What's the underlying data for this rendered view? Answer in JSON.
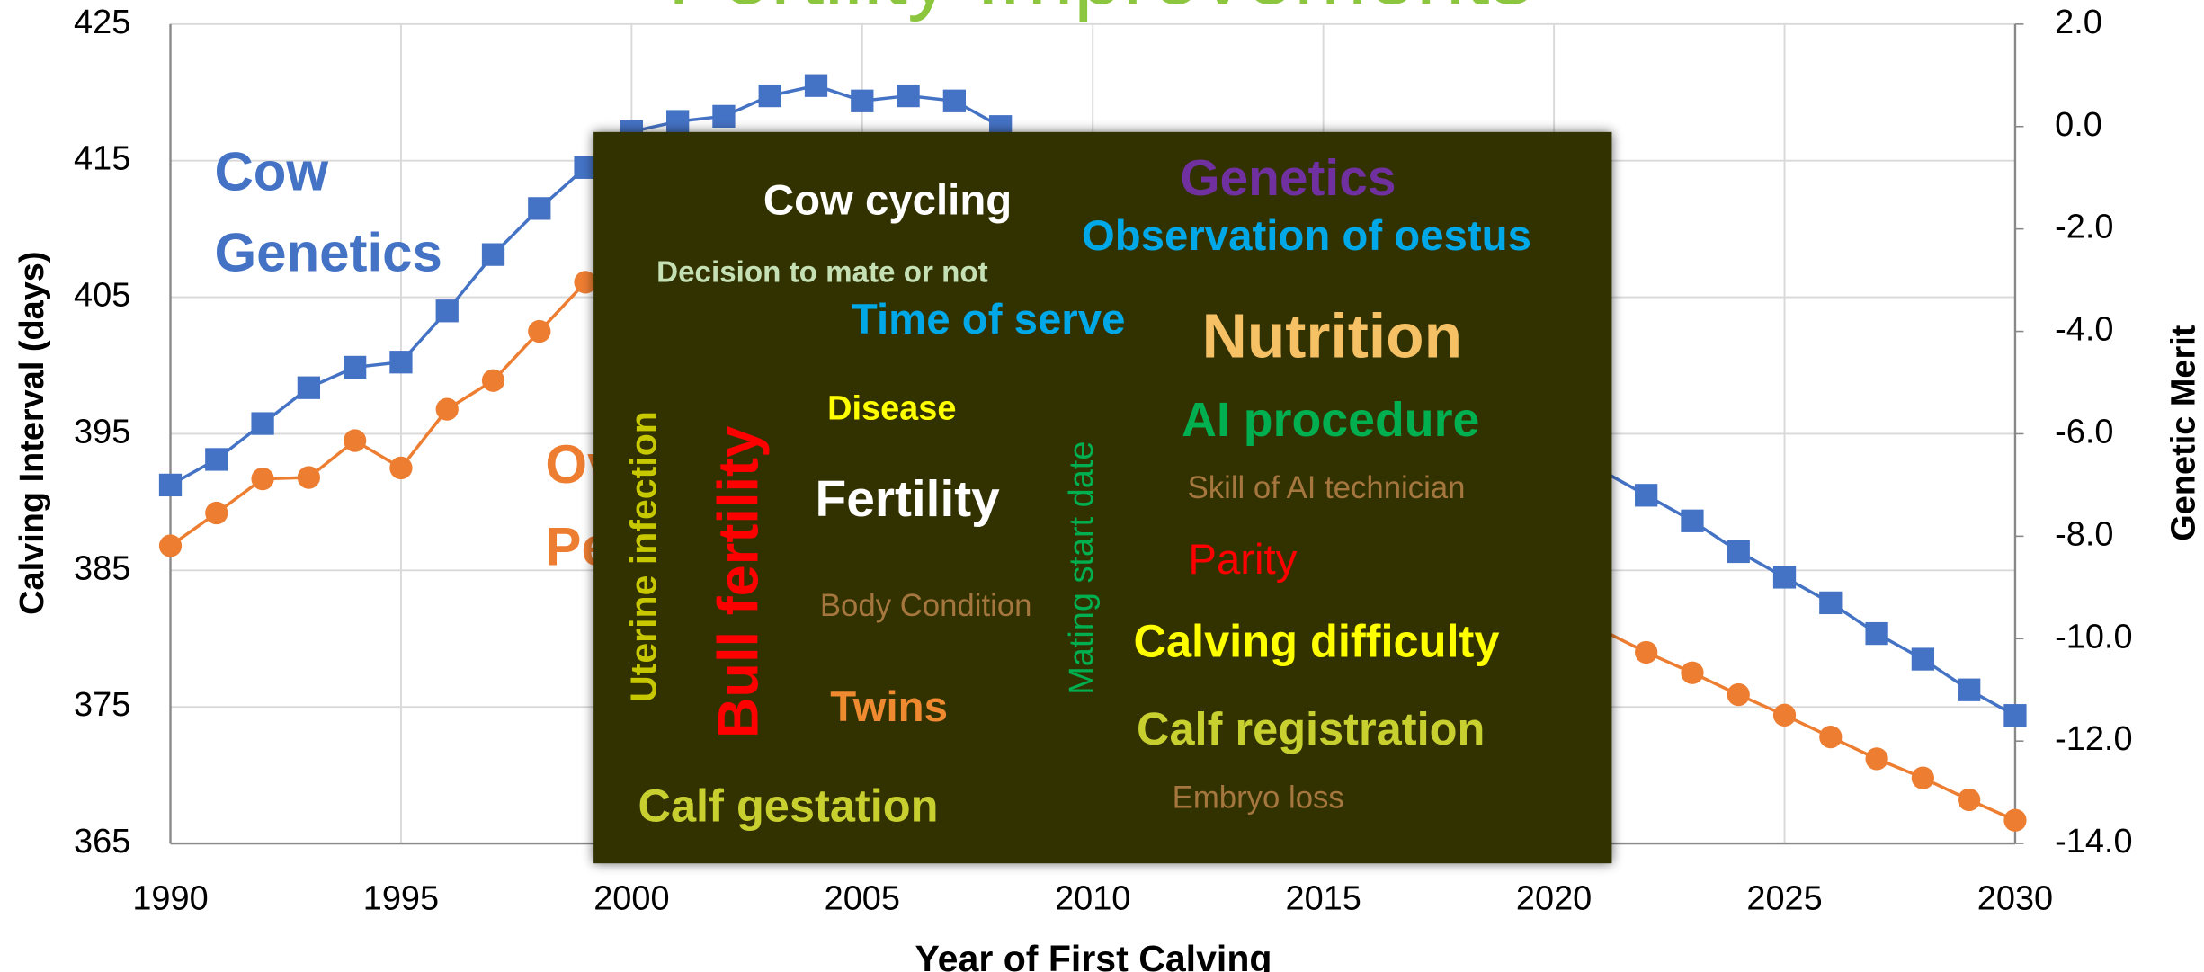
{
  "chart_data": {
    "type": "line",
    "title": "Fertility Improvements",
    "x_label": "Year of First Calving",
    "y_label": "Calving Interval (days)",
    "y2_label": "Genetic Merit",
    "x": [
      1990,
      1991,
      1992,
      1993,
      1994,
      1995,
      1996,
      1997,
      1998,
      1999,
      2000,
      2001,
      2002,
      2003,
      2004,
      2005,
      2006,
      2007,
      2008,
      2009,
      2010,
      2011,
      2012,
      2013,
      2014,
      2015,
      2016,
      2017,
      2018,
      2019,
      2020,
      2021,
      2022,
      2023,
      2024,
      2025,
      2026,
      2027,
      2028,
      2029,
      2030
    ],
    "series": [
      {
        "name": "Cow Genetics",
        "label_lines": [
          "Cow",
          "Genetics"
        ],
        "color": "#4472c4",
        "marker": "square",
        "axis": "y2",
        "values": [
          -7.0,
          -6.5,
          -5.8,
          -5.1,
          -4.7,
          -4.6,
          -3.6,
          -2.5,
          -1.6,
          -0.8,
          -0.1,
          0.1,
          0.2,
          0.6,
          0.8,
          0.5,
          0.6,
          0.5,
          0.0,
          null,
          null,
          null,
          null,
          null,
          null,
          null,
          null,
          null,
          null,
          null,
          null,
          -6.7,
          -7.2,
          -7.7,
          -8.3,
          -8.8,
          -9.3,
          -9.9,
          -10.4,
          -11.0,
          -11.5
        ]
      },
      {
        "name": "Overall Performance",
        "label_lines": [
          "Overall",
          "Performance"
        ],
        "color": "#ed7d31",
        "marker": "circle",
        "axis": "y",
        "values": [
          386.8,
          389.2,
          391.7,
          391.8,
          394.5,
          392.5,
          396.8,
          398.9,
          402.5,
          406.1,
          null,
          null,
          null,
          null,
          null,
          null,
          null,
          null,
          null,
          null,
          null,
          null,
          null,
          null,
          null,
          null,
          null,
          null,
          null,
          null,
          null,
          380.7,
          379.0,
          377.5,
          375.9,
          374.4,
          372.8,
          371.2,
          369.8,
          368.2,
          366.7
        ]
      }
    ],
    "xlim": [
      1990,
      2030
    ],
    "xticks": [
      1990,
      1995,
      2000,
      2005,
      2010,
      2015,
      2020,
      2025,
      2030
    ],
    "ylim": [
      365,
      425
    ],
    "yticks": [
      365,
      375,
      385,
      395,
      405,
      415,
      425
    ],
    "y2lim": [
      -14,
      2
    ],
    "y2ticks": [
      {
        "value": -14,
        "label": "-14.0"
      },
      {
        "value": -12,
        "label": "-12.0"
      },
      {
        "value": -10,
        "label": "-10.0"
      },
      {
        "value": -8,
        "label": "-8.0"
      },
      {
        "value": -6,
        "label": "-6.0"
      },
      {
        "value": -4,
        "label": "-4.0"
      },
      {
        "value": -2,
        "label": "-2.0"
      },
      {
        "value": 0,
        "label": "0.0"
      },
      {
        "value": 2,
        "label": "2.0"
      }
    ],
    "grid": true
  },
  "overlay": {
    "words": [
      {
        "text": "Cow cycling",
        "color": "#ffffff"
      },
      {
        "text": "Genetics",
        "color": "#7030a0"
      },
      {
        "text": "Observation of oestus",
        "color": "#00a8e8"
      },
      {
        "text": "Decision to mate or not",
        "color": "#c5e0b4"
      },
      {
        "text": "Time of serve",
        "color": "#00a8e8"
      },
      {
        "text": "Nutrition",
        "color": "#f6c064"
      },
      {
        "text": "Disease",
        "color": "#ffff00"
      },
      {
        "text": "AI procedure",
        "color": "#00b050"
      },
      {
        "text": "Uterine infection",
        "color": "#c8c800"
      },
      {
        "text": "Bull fertility",
        "color": "#ff0000"
      },
      {
        "text": "Mating start date",
        "color": "#00b050"
      },
      {
        "text": "Skill of AI technician",
        "color": "#a5773f"
      },
      {
        "text": "Fertility",
        "color": "#ffffff"
      },
      {
        "text": "Parity",
        "color": "#ff0000"
      },
      {
        "text": "Body Condition",
        "color": "#a5773f"
      },
      {
        "text": "Calving difficulty",
        "color": "#ffff00"
      },
      {
        "text": "Twins",
        "color": "#f08a30"
      },
      {
        "text": "Calf registration",
        "color": "#c8d030"
      },
      {
        "text": "Embryo loss",
        "color": "#a5773f"
      },
      {
        "text": "Calf gestation",
        "color": "#c8d030"
      }
    ]
  }
}
